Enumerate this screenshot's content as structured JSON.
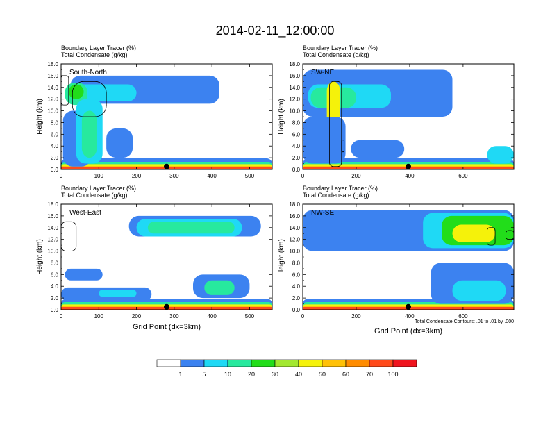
{
  "title": "2014-02-11_12:00:00",
  "colors": {
    "levels": [
      "#ffffff",
      "#3c82f0",
      "#1fd9f5",
      "#27e99e",
      "#22dd1a",
      "#a2e830",
      "#f5f20a",
      "#ffc107",
      "#ff8c00",
      "#ff4a1a",
      "#f0141e"
    ],
    "contour": "#000000",
    "marker": "#000000"
  },
  "chart_data": [
    {
      "type": "heatmap",
      "panel": "top-left",
      "label": "South-North",
      "title_line1": "Boundary Layer Tracer   (%)",
      "title_line2": "Total Condensate   (g/kg)",
      "ylabel": "Height (km)",
      "xlabel": "",
      "xlim": [
        0,
        560
      ],
      "ylim": [
        0,
        18
      ],
      "xticks": [
        0,
        100,
        200,
        300,
        400,
        500
      ],
      "xtick_labels": [
        "0",
        "100",
        "200",
        "300",
        "400",
        "500"
      ],
      "yticks": [
        0,
        2,
        4,
        6,
        8,
        10,
        12,
        14,
        16,
        18
      ],
      "ytick_labels": [
        "0.0",
        "2.0",
        "4.0",
        "6.0",
        "8.0",
        "10.0",
        "12.0",
        "14.0",
        "16.0",
        "18.0"
      ],
      "marker_x": 280,
      "regions": [
        {
          "x": [
            0,
            560
          ],
          "y": [
            0,
            1.9
          ],
          "level": 1
        },
        {
          "x": [
            0,
            560
          ],
          "y": [
            0,
            1.3
          ],
          "level": 3
        },
        {
          "x": [
            0,
            560
          ],
          "y": [
            0,
            0.9
          ],
          "level": 6
        },
        {
          "x": [
            0,
            560
          ],
          "y": [
            0,
            0.5
          ],
          "level": 9
        },
        {
          "x": [
            25,
            420
          ],
          "y": [
            11.2,
            16
          ],
          "level": 1
        },
        {
          "x": [
            5,
            80
          ],
          "y": [
            0.5,
            10
          ],
          "level": 1
        },
        {
          "x": [
            20,
            200
          ],
          "y": [
            11.6,
            14.5
          ],
          "level": 2
        },
        {
          "x": [
            10,
            70
          ],
          "y": [
            11,
            14.8
          ],
          "level": 3
        },
        {
          "x": [
            20,
            60
          ],
          "y": [
            12,
            14.5
          ],
          "level": 4
        },
        {
          "x": [
            40,
            110
          ],
          "y": [
            1,
            12
          ],
          "level": 2
        },
        {
          "x": [
            55,
            95
          ],
          "y": [
            2,
            10
          ],
          "level": 3
        },
        {
          "x": [
            120,
            190
          ],
          "y": [
            2,
            7
          ],
          "level": 1
        }
      ],
      "contours": [
        {
          "x": [
            30,
            120
          ],
          "y": [
            9,
            15
          ]
        },
        {
          "x": [
            0,
            20
          ],
          "y": [
            11,
            16
          ]
        }
      ]
    },
    {
      "type": "heatmap",
      "panel": "top-right",
      "label": "SW-NE",
      "title_line1": "Boundary Layer Tracer   (%)",
      "title_line2": "Total Condensate   (g/kg)",
      "ylabel": "Height (km)",
      "xlabel": "",
      "xlim": [
        0,
        790
      ],
      "ylim": [
        0,
        18
      ],
      "xticks": [
        0,
        200,
        400,
        600
      ],
      "xtick_labels": [
        "0",
        "200",
        "400",
        "600"
      ],
      "yticks": [
        0,
        2,
        4,
        6,
        8,
        10,
        12,
        14,
        16,
        18
      ],
      "ytick_labels": [
        "0.0",
        "2.0",
        "4.0",
        "6.0",
        "8.0",
        "10.0",
        "12.0",
        "14.0",
        "16.0",
        "18.0"
      ],
      "marker_x": 395,
      "regions": [
        {
          "x": [
            0,
            790
          ],
          "y": [
            0,
            1.9
          ],
          "level": 1
        },
        {
          "x": [
            0,
            790
          ],
          "y": [
            0,
            1.3
          ],
          "level": 3
        },
        {
          "x": [
            0,
            790
          ],
          "y": [
            0,
            0.9
          ],
          "level": 6
        },
        {
          "x": [
            0,
            790
          ],
          "y": [
            0,
            0.5
          ],
          "level": 9
        },
        {
          "x": [
            0,
            560
          ],
          "y": [
            9,
            17
          ],
          "level": 1
        },
        {
          "x": [
            20,
            330
          ],
          "y": [
            10.5,
            14.5
          ],
          "level": 2
        },
        {
          "x": [
            30,
            200
          ],
          "y": [
            10.5,
            14
          ],
          "level": 3
        },
        {
          "x": [
            90,
            140
          ],
          "y": [
            5,
            15
          ],
          "level": 6
        },
        {
          "x": [
            0,
            160
          ],
          "y": [
            1,
            9
          ],
          "level": 1
        },
        {
          "x": [
            180,
            380
          ],
          "y": [
            2,
            5
          ],
          "level": 1
        },
        {
          "x": [
            690,
            790
          ],
          "y": [
            1,
            4
          ],
          "level": 2
        }
      ],
      "contours": [
        {
          "x": [
            100,
            145
          ],
          "y": [
            0.5,
            15
          ]
        },
        {
          "x": [
            145,
            155
          ],
          "y": [
            3,
            5
          ]
        }
      ]
    },
    {
      "type": "heatmap",
      "panel": "bottom-left",
      "label": "West-East",
      "title_line1": "Boundary Layer Tracer   (%)",
      "title_line2": "Total Condensate   (g/kg)",
      "ylabel": "Height (km)",
      "xlabel": "Grid Point (dx=3km)",
      "xlim": [
        0,
        560
      ],
      "ylim": [
        0,
        18
      ],
      "xticks": [
        0,
        100,
        200,
        300,
        400,
        500
      ],
      "xtick_labels": [
        "0",
        "100",
        "200",
        "300",
        "400",
        "500"
      ],
      "yticks": [
        0,
        2,
        4,
        6,
        8,
        10,
        12,
        14,
        16,
        18
      ],
      "ytick_labels": [
        "0.0",
        "2.0",
        "4.0",
        "6.0",
        "8.0",
        "10.0",
        "12.0",
        "14.0",
        "16.0",
        "18.0"
      ],
      "marker_x": 280,
      "regions": [
        {
          "x": [
            0,
            560
          ],
          "y": [
            0,
            1.9
          ],
          "level": 1
        },
        {
          "x": [
            0,
            560
          ],
          "y": [
            0,
            1.3
          ],
          "level": 3
        },
        {
          "x": [
            0,
            560
          ],
          "y": [
            0,
            0.9
          ],
          "level": 6
        },
        {
          "x": [
            0,
            560
          ],
          "y": [
            0,
            0.5
          ],
          "level": 9
        },
        {
          "x": [
            180,
            530
          ],
          "y": [
            12.5,
            16
          ],
          "level": 1
        },
        {
          "x": [
            200,
            480
          ],
          "y": [
            12.5,
            15.5
          ],
          "level": 2
        },
        {
          "x": [
            230,
            460
          ],
          "y": [
            13,
            15
          ],
          "level": 3
        },
        {
          "x": [
            10,
            110
          ],
          "y": [
            5,
            7
          ],
          "level": 1
        },
        {
          "x": [
            0,
            240
          ],
          "y": [
            1.5,
            3.8
          ],
          "level": 1
        },
        {
          "x": [
            100,
            200
          ],
          "y": [
            2.2,
            3.4
          ],
          "level": 2
        },
        {
          "x": [
            350,
            500
          ],
          "y": [
            2,
            6
          ],
          "level": 1
        },
        {
          "x": [
            380,
            460
          ],
          "y": [
            2.5,
            5
          ],
          "level": 3
        }
      ],
      "contours": [
        {
          "x": [
            0,
            40
          ],
          "y": [
            10,
            15
          ]
        }
      ]
    },
    {
      "type": "heatmap",
      "panel": "bottom-right",
      "label": "NW-SE",
      "title_line1": "Boundary Layer Tracer   (%)",
      "title_line2": "Total Condensate   (g/kg)",
      "ylabel": "Height (km)",
      "xlabel": "Grid Point (dx=3km)",
      "note": "Total Condensate Contours: .01 to .01 by .000",
      "xlim": [
        0,
        790
      ],
      "ylim": [
        0,
        18
      ],
      "xticks": [
        0,
        200,
        400,
        600
      ],
      "xtick_labels": [
        "0",
        "200",
        "400",
        "600"
      ],
      "yticks": [
        0,
        2,
        4,
        6,
        8,
        10,
        12,
        14,
        16,
        18
      ],
      "ytick_labels": [
        "0.0",
        "2.0",
        "4.0",
        "6.0",
        "8.0",
        "10.0",
        "12.0",
        "14.0",
        "16.0",
        "18.0"
      ],
      "marker_x": 395,
      "regions": [
        {
          "x": [
            0,
            790
          ],
          "y": [
            0,
            1.9
          ],
          "level": 1
        },
        {
          "x": [
            0,
            790
          ],
          "y": [
            0,
            1.3
          ],
          "level": 3
        },
        {
          "x": [
            0,
            790
          ],
          "y": [
            0,
            0.9
          ],
          "level": 6
        },
        {
          "x": [
            0,
            790
          ],
          "y": [
            0,
            0.5
          ],
          "level": 9
        },
        {
          "x": [
            0,
            790
          ],
          "y": [
            10,
            17
          ],
          "level": 1
        },
        {
          "x": [
            450,
            790
          ],
          "y": [
            10.5,
            16.5
          ],
          "level": 2
        },
        {
          "x": [
            520,
            790
          ],
          "y": [
            11,
            16
          ],
          "level": 4
        },
        {
          "x": [
            560,
            720
          ],
          "y": [
            11.5,
            14.5
          ],
          "level": 6
        },
        {
          "x": [
            480,
            790
          ],
          "y": [
            1,
            8
          ],
          "level": 1
        },
        {
          "x": [
            560,
            760
          ],
          "y": [
            1.5,
            5
          ],
          "level": 2
        }
      ],
      "contours": [
        {
          "x": [
            690,
            720
          ],
          "y": [
            11,
            14
          ]
        },
        {
          "x": [
            760,
            790
          ],
          "y": [
            12,
            13.5
          ]
        }
      ]
    }
  ],
  "colorbar": {
    "labels": [
      "1",
      "5",
      "10",
      "20",
      "30",
      "40",
      "50",
      "60",
      "70",
      "100"
    ]
  }
}
